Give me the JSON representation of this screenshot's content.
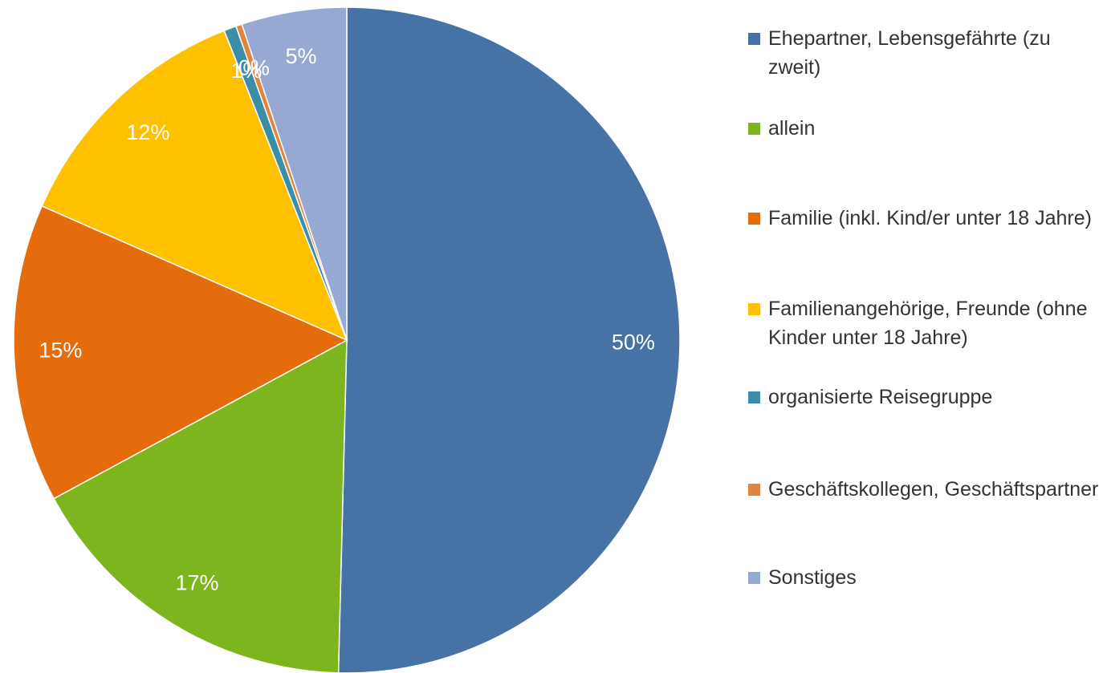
{
  "chart_data": {
    "type": "pie",
    "categories": [
      "Ehepartner, Lebensgefährte (zu zweit)",
      "allein",
      "Familie (inkl. Kind/er unter 18 Jahre)",
      "Familienangehörige, Freunde (ohne Kinder unter 18 Jahre)",
      "organisierte Reisegruppe",
      "Geschäftskollegen, Geschäftspartner",
      "Sonstiges"
    ],
    "values": [
      50.4,
      16.7,
      14.5,
      12.4,
      0.6,
      0.3,
      5.1
    ],
    "value_labels": [
      "50%",
      "17%",
      "15%",
      "12%",
      "1%",
      "0%",
      "5%"
    ],
    "colors": [
      "#4672a6",
      "#7cb51e",
      "#e46c0d",
      "#ffc000",
      "#3a8ea8",
      "#e0853e",
      "#95a9d3"
    ],
    "legend": "right"
  }
}
